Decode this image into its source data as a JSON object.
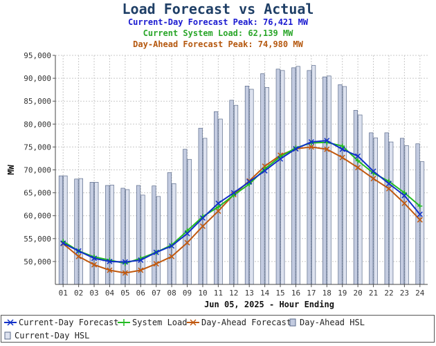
{
  "title": "Load Forecast vs Actual",
  "subtitles": {
    "current_day_peak": "Current-Day Forecast Peak:  76,421 MW",
    "current_load": "Current System Load:  62,139 MW",
    "day_ahead_peak": "Day-Ahead Forecast Peak:  74,980 MW"
  },
  "chart_data": {
    "type": "line",
    "xlabel": "Jun 05, 2025 - Hour Ending",
    "ylabel": "MW",
    "ylim": [
      45000,
      95000
    ],
    "yticks": [
      "50,000",
      "55,000",
      "60,000",
      "65,000",
      "70,000",
      "75,000",
      "80,000",
      "85,000",
      "90,000",
      "95,000"
    ],
    "ytick_values": [
      50000,
      55000,
      60000,
      65000,
      70000,
      75000,
      80000,
      85000,
      90000,
      95000
    ],
    "grid": true,
    "categories": [
      "01",
      "02",
      "03",
      "04",
      "05",
      "06",
      "07",
      "08",
      "09",
      "10",
      "11",
      "12",
      "13",
      "14",
      "15",
      "16",
      "17",
      "18",
      "19",
      "20",
      "21",
      "22",
      "23",
      "24"
    ],
    "bar_series": [
      {
        "name": "Day-Ahead HSL",
        "color": "#c3cbe0",
        "values": [
          68700,
          68000,
          67300,
          66600,
          66000,
          66600,
          66500,
          69400,
          74500,
          79100,
          82700,
          85200,
          88300,
          91000,
          92000,
          92300,
          91700,
          90300,
          88600,
          83000,
          78100,
          78100,
          76900,
          75700
        ]
      },
      {
        "name": "Current-Day HSL",
        "color": "#dde2ef",
        "values": [
          68700,
          68100,
          67300,
          66700,
          65700,
          64500,
          64200,
          67000,
          72300,
          76900,
          81100,
          84100,
          87600,
          88000,
          91700,
          92600,
          92800,
          90500,
          88200,
          82000,
          77000,
          76100,
          75300,
          71800
        ]
      }
    ],
    "series": [
      {
        "name": "Current-Day Forecast",
        "color": "#1030c8",
        "marker": "x",
        "values": [
          54000,
          52300,
          50700,
          50000,
          49900,
          50300,
          52000,
          53400,
          56100,
          59500,
          62700,
          65000,
          67400,
          69800,
          72400,
          74600,
          76100,
          76400,
          74500,
          73000,
          69700,
          67000,
          64400,
          60300
        ]
      },
      {
        "name": "System Load",
        "color": "#22bb22",
        "marker": "+",
        "values": [
          54400,
          52300,
          51000,
          50300,
          49600,
          50700,
          52000,
          53600,
          56700,
          59800,
          61900,
          64500,
          66900,
          70200,
          72900,
          74800,
          75900,
          76000,
          75200,
          72000,
          69300,
          67500,
          65000,
          62100
        ]
      },
      {
        "name": "Day-Ahead Forecast",
        "color": "#c0580e",
        "marker": "x",
        "values": [
          53900,
          51100,
          49300,
          48100,
          47500,
          48100,
          49500,
          51100,
          54100,
          57700,
          61000,
          64600,
          67600,
          70800,
          73200,
          74600,
          75000,
          74500,
          72700,
          70500,
          68100,
          65900,
          62700,
          59100
        ]
      }
    ],
    "legend_position": "bottom"
  },
  "legend": [
    {
      "label": "Current-Day Forecast",
      "kind": "line",
      "color": "#1030c8",
      "marker": "x"
    },
    {
      "label": "System Load",
      "kind": "line",
      "color": "#22bb22",
      "marker": "+"
    },
    {
      "label": "Day-Ahead Forecast",
      "kind": "line",
      "color": "#c0580e",
      "marker": "x"
    },
    {
      "label": "Day-Ahead HSL",
      "kind": "bar",
      "color": "#c3cbe0"
    },
    {
      "label": "Current-Day HSL",
      "kind": "bar",
      "color": "#dde2ef"
    }
  ]
}
